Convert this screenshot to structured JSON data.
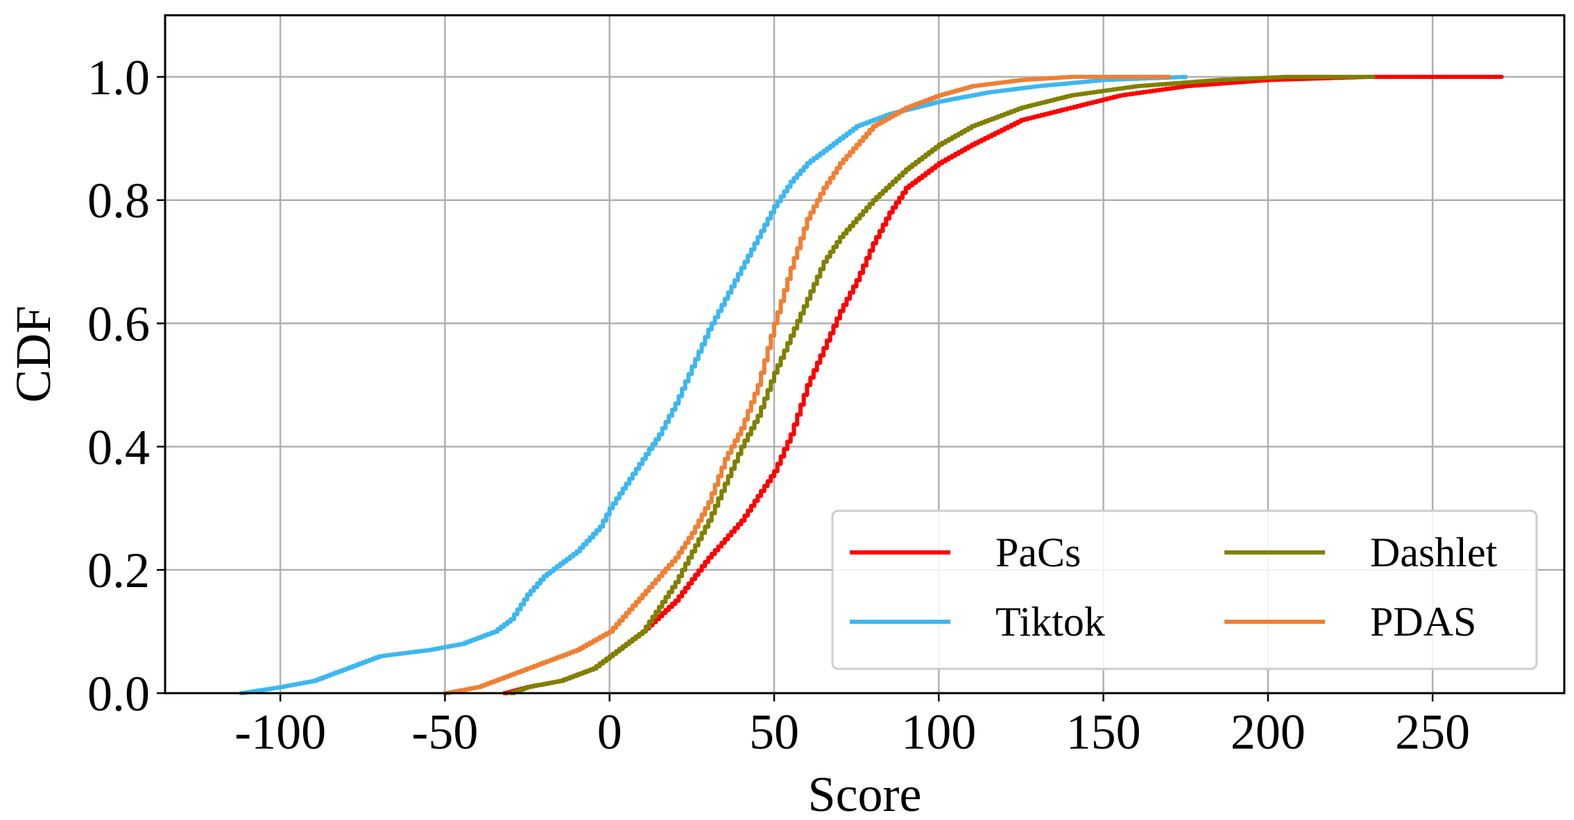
{
  "chart_data": {
    "type": "line",
    "title": "",
    "xlabel": "Score",
    "ylabel": "CDF",
    "xlim": [
      -135,
      290
    ],
    "ylim": [
      0.0,
      1.1
    ],
    "xticks": [
      -100,
      -50,
      0,
      50,
      100,
      150,
      200,
      250
    ],
    "xtick_labels": [
      "-100",
      "-50",
      "0",
      "50",
      "100",
      "150",
      "200",
      "250"
    ],
    "yticks": [
      0.0,
      0.2,
      0.4,
      0.6,
      0.8,
      1.0
    ],
    "ytick_labels": [
      "0.0",
      "0.2",
      "0.4",
      "0.6",
      "0.8",
      "1.0"
    ],
    "grid": true,
    "legend_position": "lower-right",
    "legend_columns": 2,
    "series": [
      {
        "name": "PaCs",
        "color": "#ff0000",
        "points": [
          [
            -32,
            0.0
          ],
          [
            -25,
            0.01
          ],
          [
            -15,
            0.02
          ],
          [
            -5,
            0.04
          ],
          [
            0,
            0.06
          ],
          [
            10,
            0.1
          ],
          [
            20,
            0.15
          ],
          [
            30,
            0.22
          ],
          [
            40,
            0.28
          ],
          [
            50,
            0.36
          ],
          [
            55,
            0.42
          ],
          [
            60,
            0.5
          ],
          [
            65,
            0.56
          ],
          [
            70,
            0.62
          ],
          [
            75,
            0.67
          ],
          [
            80,
            0.73
          ],
          [
            85,
            0.78
          ],
          [
            90,
            0.82
          ],
          [
            95,
            0.84
          ],
          [
            100,
            0.86
          ],
          [
            110,
            0.89
          ],
          [
            125,
            0.93
          ],
          [
            140,
            0.95
          ],
          [
            155,
            0.97
          ],
          [
            175,
            0.985
          ],
          [
            200,
            0.995
          ],
          [
            230,
            1.0
          ],
          [
            271,
            1.0
          ]
        ]
      },
      {
        "name": "Tiktok",
        "color": "#3db7f0",
        "points": [
          [
            -112,
            0.0
          ],
          [
            -100,
            0.01
          ],
          [
            -90,
            0.02
          ],
          [
            -80,
            0.04
          ],
          [
            -70,
            0.06
          ],
          [
            -55,
            0.07
          ],
          [
            -45,
            0.08
          ],
          [
            -35,
            0.1
          ],
          [
            -30,
            0.12
          ],
          [
            -25,
            0.16
          ],
          [
            -20,
            0.19
          ],
          [
            -10,
            0.23
          ],
          [
            -3,
            0.27
          ],
          [
            0,
            0.3
          ],
          [
            5,
            0.34
          ],
          [
            10,
            0.38
          ],
          [
            15,
            0.42
          ],
          [
            20,
            0.47
          ],
          [
            25,
            0.53
          ],
          [
            30,
            0.59
          ],
          [
            35,
            0.64
          ],
          [
            40,
            0.69
          ],
          [
            45,
            0.74
          ],
          [
            50,
            0.79
          ],
          [
            55,
            0.83
          ],
          [
            60,
            0.86
          ],
          [
            65,
            0.88
          ],
          [
            75,
            0.92
          ],
          [
            85,
            0.94
          ],
          [
            100,
            0.96
          ],
          [
            115,
            0.975
          ],
          [
            130,
            0.985
          ],
          [
            150,
            0.995
          ],
          [
            175,
            1.0
          ]
        ]
      },
      {
        "name": "Dashlet",
        "color": "#808000",
        "points": [
          [
            -30,
            0.0
          ],
          [
            -25,
            0.01
          ],
          [
            -15,
            0.02
          ],
          [
            -5,
            0.04
          ],
          [
            0,
            0.06
          ],
          [
            10,
            0.1
          ],
          [
            15,
            0.14
          ],
          [
            20,
            0.18
          ],
          [
            25,
            0.23
          ],
          [
            30,
            0.28
          ],
          [
            35,
            0.34
          ],
          [
            40,
            0.4
          ],
          [
            45,
            0.45
          ],
          [
            50,
            0.52
          ],
          [
            55,
            0.58
          ],
          [
            60,
            0.64
          ],
          [
            65,
            0.7
          ],
          [
            70,
            0.74
          ],
          [
            75,
            0.77
          ],
          [
            80,
            0.8
          ],
          [
            90,
            0.85
          ],
          [
            100,
            0.89
          ],
          [
            110,
            0.92
          ],
          [
            125,
            0.95
          ],
          [
            140,
            0.97
          ],
          [
            160,
            0.985
          ],
          [
            185,
            0.995
          ],
          [
            205,
            1.0
          ],
          [
            232,
            1.0
          ]
        ]
      },
      {
        "name": "PDAS",
        "color": "#f07f33",
        "points": [
          [
            -50,
            0.0
          ],
          [
            -40,
            0.01
          ],
          [
            -30,
            0.03
          ],
          [
            -20,
            0.05
          ],
          [
            -10,
            0.07
          ],
          [
            0,
            0.1
          ],
          [
            5,
            0.13
          ],
          [
            10,
            0.16
          ],
          [
            15,
            0.19
          ],
          [
            20,
            0.22
          ],
          [
            25,
            0.26
          ],
          [
            30,
            0.31
          ],
          [
            35,
            0.38
          ],
          [
            40,
            0.43
          ],
          [
            45,
            0.5
          ],
          [
            50,
            0.6
          ],
          [
            55,
            0.69
          ],
          [
            60,
            0.77
          ],
          [
            65,
            0.82
          ],
          [
            70,
            0.86
          ],
          [
            80,
            0.92
          ],
          [
            90,
            0.95
          ],
          [
            100,
            0.97
          ],
          [
            110,
            0.985
          ],
          [
            125,
            0.995
          ],
          [
            140,
            1.0
          ],
          [
            170,
            1.0
          ]
        ]
      }
    ]
  }
}
